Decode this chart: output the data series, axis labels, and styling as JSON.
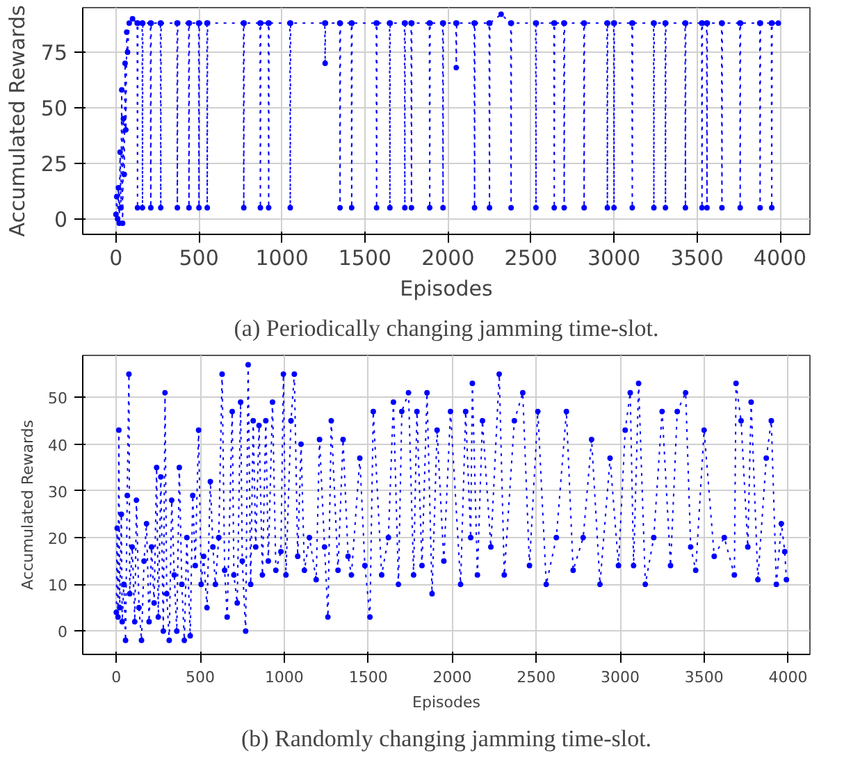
{
  "chart_data": [
    {
      "type": "line",
      "title": "(a) Periodically changing jamming time-slot.",
      "xlabel": "Episodes",
      "ylabel": "Accumulated Rewards",
      "xlim": [
        -200,
        4180
      ],
      "ylim": [
        -7,
        95
      ],
      "xticks": [
        0,
        500,
        1000,
        1500,
        2000,
        2500,
        3000,
        3500,
        4000
      ],
      "yticks": [
        0,
        25,
        50,
        75
      ],
      "grid": true,
      "marker": "circle",
      "line_style": "dotted",
      "series": [
        {
          "color": "#0000ff",
          "x": [
            0,
            5,
            10,
            15,
            20,
            25,
            30,
            35,
            40,
            45,
            50,
            55,
            60,
            65,
            70,
            80,
            100,
            128,
            130,
            132,
            158,
            160,
            162,
            208,
            210,
            212,
            268,
            270,
            272,
            368,
            370,
            372,
            438,
            440,
            442,
            498,
            500,
            502,
            548,
            550,
            552,
            768,
            770,
            772,
            868,
            870,
            872,
            918,
            920,
            922,
            1048,
            1050,
            1052,
            1258,
            1260,
            1262,
            1348,
            1350,
            1352,
            1418,
            1420,
            1422,
            1568,
            1570,
            1572,
            1648,
            1650,
            1652,
            1738,
            1740,
            1742,
            1778,
            1780,
            1782,
            1888,
            1890,
            1892,
            1968,
            1970,
            1972,
            2048,
            2050,
            2052,
            2158,
            2160,
            2162,
            2248,
            2250,
            2252,
            2320,
            2378,
            2380,
            2382,
            2528,
            2530,
            2532,
            2638,
            2640,
            2642,
            2698,
            2700,
            2702,
            2818,
            2820,
            2822,
            2958,
            2960,
            2962,
            2998,
            3000,
            3002,
            3108,
            3110,
            3112,
            3238,
            3240,
            3242,
            3308,
            3310,
            3312,
            3428,
            3430,
            3432,
            3528,
            3530,
            3532,
            3558,
            3560,
            3562,
            3648,
            3650,
            3652,
            3758,
            3760,
            3762,
            3878,
            3880,
            3882,
            3948,
            3950,
            3952,
            3990
          ],
          "values": [
            2,
            10,
            0,
            14,
            -2,
            30,
            5,
            58,
            -2,
            45,
            20,
            70,
            40,
            84,
            75,
            88,
            90,
            88,
            5,
            88,
            88,
            5,
            88,
            88,
            5,
            88,
            88,
            5,
            88,
            88,
            5,
            88,
            88,
            5,
            88,
            88,
            5,
            88,
            88,
            5,
            88,
            88,
            5,
            88,
            88,
            5,
            88,
            88,
            5,
            88,
            88,
            5,
            88,
            88,
            70,
            88,
            88,
            5,
            88,
            88,
            5,
            88,
            88,
            5,
            88,
            88,
            5,
            88,
            88,
            5,
            88,
            88,
            5,
            88,
            88,
            5,
            88,
            88,
            5,
            88,
            88,
            68,
            88,
            88,
            5,
            88,
            88,
            5,
            88,
            92,
            88,
            5,
            88,
            88,
            5,
            88,
            88,
            5,
            88,
            88,
            5,
            88,
            88,
            5,
            88,
            88,
            5,
            88,
            88,
            5,
            88,
            88,
            5,
            88,
            88,
            5,
            88,
            88,
            5,
            88,
            88,
            5,
            88,
            88,
            5,
            88,
            88,
            5,
            88,
            88,
            5,
            88,
            88,
            5,
            88,
            88,
            5,
            88,
            88,
            5,
            88,
            88
          ]
        }
      ]
    },
    {
      "type": "line",
      "title": "(b) Randomly changing jamming time-slot.",
      "xlabel": "Episodes",
      "ylabel": "Accumulated Rewards",
      "xlim": [
        -200,
        4130
      ],
      "ylim": [
        -5,
        59
      ],
      "xticks": [
        0,
        500,
        1000,
        1500,
        2000,
        2500,
        3000,
        3500,
        4000
      ],
      "yticks": [
        0,
        10,
        20,
        30,
        40,
        50
      ],
      "grid": true,
      "marker": "circle",
      "line_style": "dotted",
      "series": [
        {
          "color": "#0000ff",
          "x": [
            0,
            5,
            10,
            15,
            20,
            30,
            35,
            45,
            55,
            65,
            75,
            80,
            95,
            110,
            120,
            135,
            150,
            165,
            180,
            195,
            210,
            225,
            240,
            250,
            265,
            280,
            290,
            300,
            315,
            330,
            345,
            360,
            375,
            390,
            405,
            420,
            440,
            455,
            470,
            490,
            505,
            520,
            540,
            560,
            575,
            590,
            610,
            630,
            645,
            660,
            690,
            700,
            720,
            740,
            750,
            770,
            785,
            800,
            815,
            830,
            850,
            870,
            890,
            905,
            930,
            950,
            980,
            995,
            1010,
            1040,
            1060,
            1080,
            1100,
            1120,
            1150,
            1190,
            1210,
            1240,
            1260,
            1280,
            1320,
            1350,
            1380,
            1400,
            1450,
            1480,
            1510,
            1530,
            1580,
            1620,
            1650,
            1680,
            1700,
            1740,
            1770,
            1790,
            1820,
            1850,
            1880,
            1910,
            1950,
            1990,
            2050,
            2080,
            2110,
            2120,
            2150,
            2180,
            2230,
            2280,
            2310,
            2370,
            2420,
            2460,
            2510,
            2560,
            2620,
            2680,
            2720,
            2780,
            2830,
            2880,
            2940,
            2990,
            3030,
            3060,
            3080,
            3110,
            3150,
            3200,
            3250,
            3300,
            3340,
            3390,
            3420,
            3450,
            3500,
            3560,
            3620,
            3680,
            3690,
            3720,
            3760,
            3780,
            3820,
            3870,
            3900,
            3930,
            3960,
            3980,
            3990
          ],
          "values": [
            4,
            22,
            3,
            43,
            5,
            25,
            2,
            10,
            -2,
            29,
            55,
            8,
            18,
            2,
            28,
            5,
            -2,
            15,
            23,
            2,
            18,
            6,
            35,
            3,
            33,
            0,
            51,
            8,
            -2,
            28,
            12,
            0,
            35,
            10,
            -2,
            20,
            -1,
            29,
            14,
            43,
            10,
            16,
            5,
            32,
            18,
            10,
            20,
            55,
            13,
            3,
            47,
            12,
            6,
            49,
            15,
            0,
            57,
            10,
            45,
            18,
            44,
            12,
            45,
            15,
            49,
            13,
            17,
            55,
            12,
            45,
            55,
            16,
            40,
            13,
            20,
            11,
            41,
            18,
            3,
            45,
            13,
            41,
            16,
            12,
            37,
            14,
            3,
            47,
            12,
            20,
            49,
            10,
            47,
            51,
            12,
            47,
            14,
            51,
            8,
            43,
            15,
            47,
            10,
            47,
            20,
            53,
            12,
            45,
            18,
            55,
            12,
            45,
            51,
            14,
            47,
            10,
            20,
            47,
            13,
            20,
            41,
            10,
            37,
            14,
            43,
            51,
            14,
            53,
            10,
            20,
            47,
            14,
            47,
            51,
            18,
            13,
            43,
            16,
            20,
            12,
            53,
            45,
            18,
            49,
            11,
            37,
            45,
            10,
            23,
            17,
            11
          ]
        }
      ]
    }
  ]
}
